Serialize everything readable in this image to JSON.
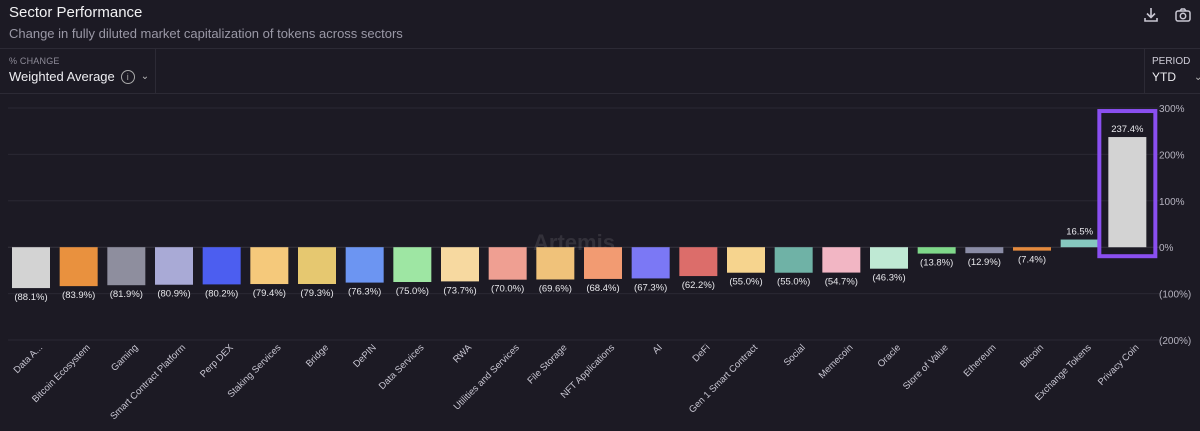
{
  "header": {
    "title": "Sector Performance",
    "subtitle": "Change in fully diluted market capitalization of tokens across sectors"
  },
  "controls": {
    "change_label": "% CHANGE",
    "change_value": "Weighted Average",
    "period_label": "PERIOD",
    "period_value": "YTD"
  },
  "watermark": "Artemis",
  "chart_data": {
    "type": "bar",
    "ylim": [
      -200,
      300
    ],
    "yticks": [
      {
        "value": 300,
        "label": "300%"
      },
      {
        "value": 200,
        "label": "200%"
      },
      {
        "value": 100,
        "label": "100%"
      },
      {
        "value": 0,
        "label": "0%"
      },
      {
        "value": -100,
        "label": "(100%)"
      },
      {
        "value": -200,
        "label": "(200%)"
      }
    ],
    "categories": [
      "Data A...",
      "Bitcoin Ecosystem",
      "Gaming",
      "Smart Contract Platform",
      "Perp DEX",
      "Staking Services",
      "Bridge",
      "DePIN",
      "Data Services",
      "RWA",
      "Utilities and Services",
      "File Storage",
      "NFT Applications",
      "AI",
      "DeFi",
      "Gen 1 Smart Contract",
      "Social",
      "Memecoin",
      "Oracle",
      "Store of Value",
      "Ethereum",
      "Bitcoin",
      "Exchange Tokens",
      "Privacy Coin"
    ],
    "values": [
      -88.1,
      -83.9,
      -81.9,
      -80.9,
      -80.2,
      -79.4,
      -79.3,
      -76.3,
      -75.0,
      -73.7,
      -70.0,
      -69.6,
      -68.4,
      -67.3,
      -62.2,
      -55.0,
      -55.0,
      -54.7,
      -46.3,
      -13.8,
      -12.9,
      -7.4,
      16.5,
      237.4
    ],
    "labels": [
      "(88.1%)",
      "(83.9%)",
      "(81.9%)",
      "(80.9%)",
      "(80.2%)",
      "(79.4%)",
      "(79.3%)",
      "(76.3%)",
      "(75.0%)",
      "(73.7%)",
      "(70.0%)",
      "(69.6%)",
      "(68.4%)",
      "(67.3%)",
      "(62.2%)",
      "(55.0%)",
      "(55.0%)",
      "(54.7%)",
      "(46.3%)",
      "(13.8%)",
      "(12.9%)",
      "(7.4%)",
      "16.5%",
      "237.4%"
    ],
    "colors": [
      "#d3d3d3",
      "#e9913e",
      "#8e8e9e",
      "#a9aad6",
      "#4c5ef0",
      "#f5c97b",
      "#e6c870",
      "#6c95f2",
      "#9ee6a3",
      "#f7d9a0",
      "#ef9f92",
      "#f0c27a",
      "#f29b72",
      "#7b78f5",
      "#dc6d6a",
      "#f6d48e",
      "#6fb2a6",
      "#f2b6c4",
      "#bfe9d4",
      "#7fd88a",
      "#8a8ca6",
      "#e58a3d",
      "#86c8bf",
      "#d3d3d3"
    ],
    "highlight_index": 23,
    "highlight_color": "#8a4ff0",
    "grid": true
  }
}
